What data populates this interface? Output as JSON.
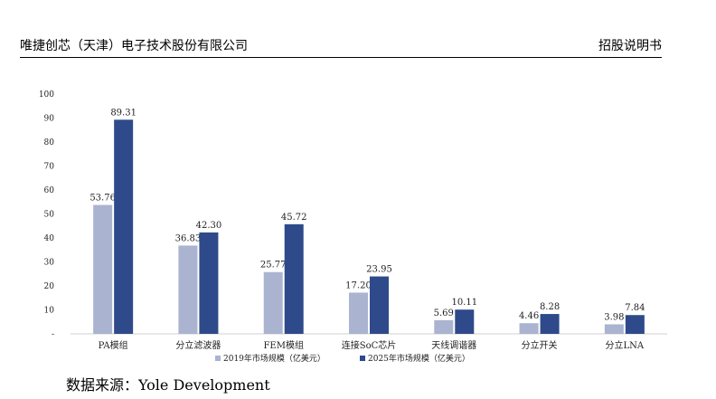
{
  "header": {
    "company": "唯捷创芯（天津）电子技术股份有限公司",
    "doc_type": "招股说明书"
  },
  "source": "数据来源：Yole Development",
  "colors": {
    "series_2019": "#aab4d0",
    "series_2025": "#2e4a8a"
  },
  "chart_data": {
    "type": "bar",
    "categories": [
      "PA模组",
      "分立滤波器",
      "FEM模组",
      "连接SoC芯片",
      "天线调谐器",
      "分立开关",
      "分立LNA"
    ],
    "series": [
      {
        "name": "2019年市场规模（亿美元）",
        "values": [
          53.76,
          36.83,
          25.77,
          17.2,
          5.69,
          4.46,
          3.98
        ],
        "labels": [
          "53.76",
          "36.83",
          "25.77",
          "17.20",
          "5.69",
          "4.46",
          "3.98"
        ]
      },
      {
        "name": "2025年市场规模（亿美元）",
        "values": [
          89.31,
          42.3,
          45.72,
          23.95,
          10.11,
          8.28,
          7.84
        ],
        "labels": [
          "89.31",
          "42.30",
          "45.72",
          "23.95",
          "10.11",
          "8.28",
          "7.84"
        ]
      }
    ],
    "yticks": [
      "-",
      "10",
      "20",
      "30",
      "40",
      "50",
      "60",
      "70",
      "80",
      "90",
      "100"
    ],
    "ylim": [
      0,
      100
    ],
    "legend_position": "bottom",
    "grid": false,
    "title": "",
    "xlabel": "",
    "ylabel": ""
  }
}
